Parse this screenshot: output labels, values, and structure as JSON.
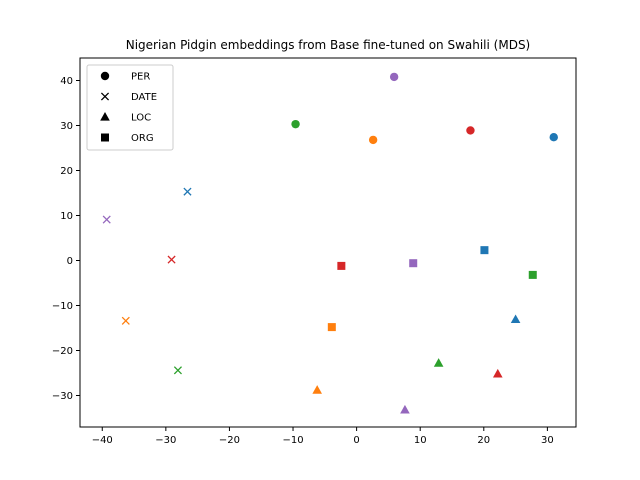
{
  "chart_data": {
    "type": "scatter",
    "title": "Nigerian Pidgin embeddings from Base fine-tuned on Swahili (MDS)",
    "xlabel": "",
    "ylabel": "",
    "xlim": [
      -43.5,
      34.5
    ],
    "ylim": [
      -37,
      45
    ],
    "xticks": [
      -40,
      -30,
      -20,
      -10,
      0,
      10,
      20,
      30
    ],
    "yticks": [
      -30,
      -20,
      -10,
      0,
      10,
      20,
      30,
      40
    ],
    "xtick_labels": [
      "−40",
      "−30",
      "−20",
      "−10",
      "0",
      "10",
      "20",
      "30"
    ],
    "ytick_labels": [
      "−30",
      "−20",
      "−10",
      "0",
      "10",
      "20",
      "30",
      "40"
    ],
    "grid": false,
    "legend": {
      "placement": "top-left",
      "entries": [
        {
          "label": "PER",
          "marker": "circle"
        },
        {
          "label": "DATE",
          "marker": "x"
        },
        {
          "label": "LOC",
          "marker": "triangle"
        },
        {
          "label": "ORG",
          "marker": "square"
        }
      ]
    },
    "points": [
      {
        "type": "PER",
        "x": 31.0,
        "y": 27.4,
        "color": "#1f77b4"
      },
      {
        "type": "PER",
        "x": 2.6,
        "y": 26.8,
        "color": "#ff7f0e"
      },
      {
        "type": "PER",
        "x": -9.6,
        "y": 30.3,
        "color": "#2ca02c"
      },
      {
        "type": "PER",
        "x": 17.9,
        "y": 28.9,
        "color": "#d62728"
      },
      {
        "type": "PER",
        "x": 5.9,
        "y": 40.8,
        "color": "#9467bd"
      },
      {
        "type": "DATE",
        "x": -26.6,
        "y": 15.3,
        "color": "#1f77b4"
      },
      {
        "type": "DATE",
        "x": -36.3,
        "y": -13.4,
        "color": "#ff7f0e"
      },
      {
        "type": "DATE",
        "x": -28.1,
        "y": -24.4,
        "color": "#2ca02c"
      },
      {
        "type": "DATE",
        "x": -29.1,
        "y": 0.2,
        "color": "#d62728"
      },
      {
        "type": "DATE",
        "x": -39.3,
        "y": 9.1,
        "color": "#9467bd"
      },
      {
        "type": "LOC",
        "x": 25.0,
        "y": -13.1,
        "color": "#1f77b4"
      },
      {
        "type": "LOC",
        "x": -6.2,
        "y": -28.8,
        "color": "#ff7f0e"
      },
      {
        "type": "LOC",
        "x": 12.9,
        "y": -22.8,
        "color": "#2ca02c"
      },
      {
        "type": "LOC",
        "x": 22.2,
        "y": -25.2,
        "color": "#d62728"
      },
      {
        "type": "LOC",
        "x": 7.6,
        "y": -33.2,
        "color": "#9467bd"
      },
      {
        "type": "ORG",
        "x": 20.1,
        "y": 2.3,
        "color": "#1f77b4"
      },
      {
        "type": "ORG",
        "x": -3.9,
        "y": -14.8,
        "color": "#ff7f0e"
      },
      {
        "type": "ORG",
        "x": 27.7,
        "y": -3.2,
        "color": "#2ca02c"
      },
      {
        "type": "ORG",
        "x": -2.4,
        "y": -1.2,
        "color": "#d62728"
      },
      {
        "type": "ORG",
        "x": 8.9,
        "y": -0.6,
        "color": "#9467bd"
      }
    ]
  }
}
